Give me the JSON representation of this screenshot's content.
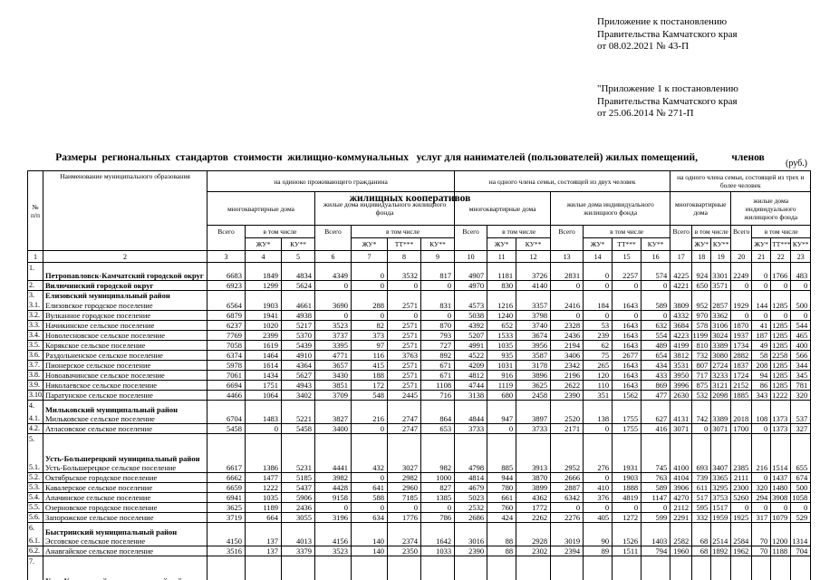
{
  "annex": {
    "block1": [
      "Приложение к постановлению",
      "Правительства Камчатского края",
      "от 08.02.2021 № 43-П"
    ],
    "block2": [
      "\"Приложение 1 к постановлению",
      "Правительства Камчатского края",
      "от 25.06.2014   № 271-П"
    ]
  },
  "title": {
    "line1": "Размеры  региональных  стандартов  стоимости  жилищно-коммунальных   услуг для нанимателей (пользователей) жилых помещений,             членов",
    "line2": "жилищных кооперативов"
  },
  "currency_note": "(руб.)",
  "table": {
    "header": {
      "num": "№ п/п",
      "name": "Наименование муниципального образования",
      "groups": [
        {
          "label": "на  одиноко проживающего гражданина"
        },
        {
          "label": "на  одного члена  семьи, состоящей  из двух человек"
        },
        {
          "label": "на  одного члена  семьи, состоящей из трех и более человек"
        }
      ],
      "mkd": "многоквартирные дома",
      "ind": "жилые дома индивидуального жилищного фонда",
      "total": "Всего",
      "including": "в том числе",
      "zhu": "ЖУ*",
      "ku": "КУ**",
      "tt": "ТТ***",
      "col_numbers": [
        "1",
        "2",
        "3",
        "4",
        "5",
        "6",
        "7",
        "8",
        "9",
        "10",
        "11",
        "12",
        "13",
        "14",
        "15",
        "16",
        "17",
        "18",
        "19",
        "20",
        "21",
        "22",
        "23"
      ]
    },
    "rows": [
      {
        "num": "1.",
        "name": "Петропавловск-Камчатский городской округ",
        "bold": true,
        "size": "xl",
        "values": [
          6683,
          1849,
          4834,
          4349,
          0,
          3532,
          817,
          4907,
          1181,
          3726,
          2831,
          0,
          2257,
          574,
          4225,
          924,
          3301,
          2249,
          0,
          1766,
          483
        ]
      },
      {
        "num": "2.",
        "name": "Вилючинский городской округ",
        "bold": true,
        "values": [
          6923,
          1299,
          5624,
          0,
          0,
          0,
          0,
          4970,
          830,
          4140,
          0,
          0,
          0,
          0,
          4221,
          650,
          3571,
          0,
          0,
          0,
          0
        ]
      },
      {
        "num": "3.",
        "name": "Елизовский муниципальный район",
        "section": true
      },
      {
        "num": "3.1.",
        "name": "Елизовское городское поселение",
        "values": [
          6564,
          1903,
          4661,
          3690,
          288,
          2571,
          831,
          4573,
          1216,
          3357,
          2416,
          184,
          1643,
          589,
          3809,
          952,
          2857,
          1929,
          144,
          1285,
          500
        ]
      },
      {
        "num": "3.2.",
        "name": "Вулканное  городское поселение",
        "values": [
          6879,
          1941,
          4938,
          0,
          0,
          0,
          0,
          5038,
          1240,
          3798,
          0,
          0,
          0,
          0,
          4332,
          970,
          3362,
          0,
          0,
          0,
          0
        ]
      },
      {
        "num": "3.3.",
        "name": "Начикинское сельское поселение",
        "values": [
          6237,
          1020,
          5217,
          3523,
          82,
          2571,
          870,
          4392,
          652,
          3740,
          2328,
          53,
          1643,
          632,
          3684,
          578,
          3106,
          1870,
          41,
          1285,
          544
        ]
      },
      {
        "num": "3.4.",
        "name": "Новолесновское сельское поселение",
        "values": [
          7769,
          2399,
          5370,
          3737,
          373,
          2571,
          793,
          5207,
          1533,
          3674,
          2436,
          239,
          1643,
          554,
          4223,
          1199,
          3024,
          1937,
          187,
          1285,
          465
        ]
      },
      {
        "num": "3.5.",
        "name": "Корякское сельское поселение",
        "values": [
          7058,
          1619,
          5439,
          3395,
          97,
          2571,
          727,
          4991,
          1035,
          3956,
          2194,
          62,
          1643,
          489,
          4199,
          810,
          3389,
          1734,
          49,
          1285,
          400
        ]
      },
      {
        "num": "3.6.",
        "name": "Раздольненское сельское поселение",
        "values": [
          6374,
          1464,
          4910,
          4771,
          116,
          3763,
          892,
          4522,
          935,
          3587,
          3406,
          75,
          2677,
          654,
          3812,
          732,
          3080,
          2882,
          58,
          2258,
          566
        ]
      },
      {
        "num": "3.7.",
        "name": "Пионерское сельское поселение",
        "values": [
          5978,
          1614,
          4364,
          3657,
          415,
          2571,
          671,
          4209,
          1031,
          3178,
          2342,
          265,
          1643,
          434,
          3531,
          807,
          2724,
          1837,
          208,
          1285,
          344
        ]
      },
      {
        "num": "3.8.",
        "name": "Новоавачинское сельское поселение",
        "values": [
          7061,
          1434,
          5627,
          3430,
          188,
          2571,
          671,
          4812,
          916,
          3896,
          2196,
          120,
          1643,
          433,
          3950,
          717,
          3233,
          1724,
          94,
          1285,
          345
        ]
      },
      {
        "num": "3.9.",
        "name": "Николаевское сельское поселение",
        "values": [
          6694,
          1751,
          4943,
          3851,
          172,
          2571,
          1108,
          4744,
          1119,
          3625,
          2622,
          110,
          1643,
          869,
          3996,
          875,
          3121,
          2152,
          86,
          1285,
          781
        ]
      },
      {
        "num": "3.10.",
        "name": "Паратунское сельское поселение",
        "values": [
          4466,
          1064,
          3402,
          3709,
          548,
          2445,
          716,
          3138,
          680,
          2458,
          2390,
          351,
          1562,
          477,
          2630,
          532,
          2098,
          1885,
          343,
          1222,
          320
        ]
      },
      {
        "num": "4.",
        "name": "Мильковский  муниципальный район",
        "section": true,
        "size": "sm"
      },
      {
        "num": "4.1.",
        "name": "Мильковское сельское поселение",
        "values": [
          6704,
          1483,
          5221,
          3827,
          216,
          2747,
          864,
          4844,
          947,
          3897,
          2520,
          138,
          1755,
          627,
          4131,
          742,
          3389,
          2018,
          108,
          1373,
          537
        ]
      },
      {
        "num": "4.2.",
        "name": "Атласовское сельское поселение",
        "values": [
          5458,
          0,
          5458,
          3400,
          0,
          2747,
          653,
          3733,
          0,
          3733,
          2171,
          0,
          1755,
          416,
          3071,
          0,
          3071,
          1700,
          0,
          1373,
          327
        ]
      },
      {
        "num": "5.",
        "name": "Усть-Большерецкий  муниципальный район",
        "section": true,
        "size": "lg"
      },
      {
        "num": "5.1.",
        "name": "Усть-Большерецкое сельское поселение",
        "values": [
          6617,
          1386,
          5231,
          4441,
          432,
          3027,
          982,
          4798,
          885,
          3913,
          2952,
          276,
          1931,
          745,
          4100,
          693,
          3407,
          2385,
          216,
          1514,
          655
        ]
      },
      {
        "num": "5.2.",
        "name": "Октябрьское городское  поселение",
        "values": [
          6662,
          1477,
          5185,
          3982,
          0,
          2982,
          1000,
          4814,
          944,
          3870,
          2666,
          0,
          1903,
          763,
          4104,
          739,
          3365,
          2111,
          0,
          1437,
          674
        ]
      },
      {
        "num": "5.3.",
        "name": "Кавалерское сельское поселение",
        "values": [
          6659,
          1222,
          5437,
          4428,
          641,
          2960,
          827,
          4679,
          780,
          3899,
          2887,
          410,
          1888,
          589,
          3906,
          611,
          3295,
          2300,
          320,
          1480,
          500
        ]
      },
      {
        "num": "5.4.",
        "name": "Апачинское сельское поселение",
        "values": [
          6941,
          1035,
          5906,
          9158,
          588,
          7185,
          1385,
          5023,
          661,
          4362,
          6342,
          376,
          4819,
          1147,
          4270,
          517,
          3753,
          5260,
          294,
          3908,
          1058
        ]
      },
      {
        "num": "5.5.",
        "name": "Озерновское городское  поселение",
        "values": [
          3625,
          1189,
          2436,
          0,
          0,
          0,
          0,
          2532,
          760,
          1772,
          0,
          0,
          0,
          0,
          2112,
          595,
          1517,
          0,
          0,
          0,
          0
        ]
      },
      {
        "num": "5.6.",
        "name": "Запорожское сельское поселение",
        "values": [
          3719,
          664,
          3055,
          3196,
          634,
          1776,
          786,
          2686,
          424,
          2262,
          2276,
          405,
          1272,
          599,
          2291,
          332,
          1959,
          1925,
          317,
          1079,
          529
        ]
      },
      {
        "num": "6.",
        "name": "Быстринский  муниципальный район",
        "section": true,
        "size": "sm"
      },
      {
        "num": "6.1.",
        "name": "Эссовское  сельское поселение",
        "values": [
          4150,
          137,
          4013,
          4156,
          140,
          2374,
          1642,
          3016,
          88,
          2928,
          3019,
          90,
          1526,
          1403,
          2582,
          68,
          2514,
          2584,
          70,
          1200,
          1314
        ]
      },
      {
        "num": "6.2.",
        "name": "Анавгайское сельское поселение",
        "values": [
          3516,
          137,
          3379,
          3523,
          140,
          2350,
          1033,
          2390,
          88,
          2302,
          2394,
          89,
          1511,
          794,
          1960,
          68,
          1892,
          1962,
          70,
          1188,
          704
        ]
      },
      {
        "num": "7.",
        "name": "Усть-Камчатский  муниципальный район",
        "section": true,
        "size": "lg"
      }
    ]
  }
}
